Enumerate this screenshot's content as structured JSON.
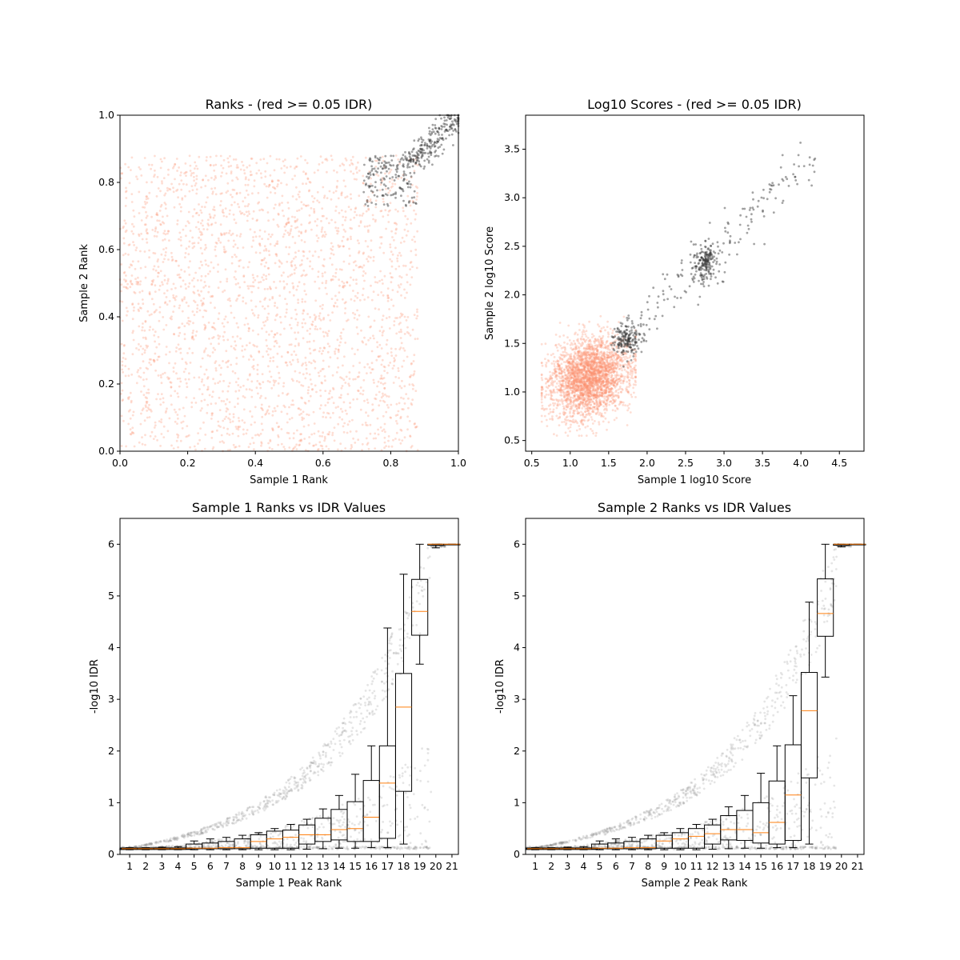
{
  "colors": {
    "low_idr": "#fc9272",
    "high_idr": "#333333",
    "median": "#ff7f0e",
    "box": "#000000"
  },
  "chart_data": [
    {
      "type": "scatter",
      "title": "Ranks - (red >= 0.05 IDR)",
      "xlabel": "Sample 1 Rank",
      "ylabel": "Sample 2 Rank",
      "xlim": [
        0.0,
        1.0
      ],
      "ylim": [
        0.0,
        1.0
      ],
      "xticks": [
        "0.0",
        "0.2",
        "0.4",
        "0.6",
        "0.8",
        "1.0"
      ],
      "yticks": [
        "0.0",
        "0.2",
        "0.4",
        "0.6",
        "0.8",
        "1.0"
      ],
      "series": [
        {
          "color": "low_idr",
          "n_points": 3000,
          "distribution": "uniform in x 0.0–0.88, y 0.0–0.88"
        },
        {
          "color": "high_idr",
          "n_points": 400,
          "distribution": "clustered along diagonal, x 0.72–1.0, y 0.72–1.0"
        }
      ],
      "grid": false
    },
    {
      "type": "scatter",
      "title": "Log10 Scores - (red >= 0.05 IDR)",
      "xlabel": "Sample 1 log10 Score",
      "ylabel": "Sample 2 log10 Score",
      "xlim": [
        0.42,
        4.82
      ],
      "ylim": [
        0.39,
        3.85
      ],
      "xticks": [
        "0.5",
        "1.0",
        "1.5",
        "2.0",
        "2.5",
        "3.0",
        "3.5",
        "4.0",
        "4.5"
      ],
      "yticks": [
        "0.5",
        "1.0",
        "1.5",
        "2.0",
        "2.5",
        "3.0",
        "3.5"
      ],
      "series": [
        {
          "color": "low_idr",
          "n_points": 3000,
          "distribution": "dense cloud centred near (1.25, 1.15), x 0.65–1.85, y 0.55–1.75"
        },
        {
          "color": "high_idr",
          "n_points": 500,
          "distribution": "cluster near (1.75, 1.55), cluster near (2.75, 2.35), sparse tail up to (4.6, 3.65)"
        }
      ],
      "grid": false
    },
    {
      "type": "box",
      "title": "Sample 1 Ranks vs IDR Values",
      "xlabel": "Sample 1 Peak Rank",
      "ylabel": "-log10 IDR",
      "ylim": [
        0,
        6.5
      ],
      "yticks": [
        "0",
        "1",
        "2",
        "3",
        "4",
        "5",
        "6"
      ],
      "categories": [
        "1",
        "2",
        "3",
        "4",
        "5",
        "6",
        "7",
        "8",
        "9",
        "10",
        "11",
        "12",
        "13",
        "14",
        "15",
        "16",
        "17",
        "18",
        "19",
        "20",
        "21"
      ],
      "boxes": [
        {
          "q1": 0.1,
          "median": 0.11,
          "q3": 0.12,
          "whislo": 0.09,
          "whishi": 0.13
        },
        {
          "q1": 0.1,
          "median": 0.11,
          "q3": 0.12,
          "whislo": 0.09,
          "whishi": 0.13
        },
        {
          "q1": 0.1,
          "median": 0.11,
          "q3": 0.12,
          "whislo": 0.09,
          "whishi": 0.14
        },
        {
          "q1": 0.1,
          "median": 0.11,
          "q3": 0.12,
          "whislo": 0.09,
          "whishi": 0.15
        },
        {
          "q1": 0.11,
          "median": 0.12,
          "q3": 0.2,
          "whislo": 0.09,
          "whishi": 0.26
        },
        {
          "q1": 0.11,
          "median": 0.12,
          "q3": 0.22,
          "whislo": 0.09,
          "whishi": 0.3
        },
        {
          "q1": 0.11,
          "median": 0.13,
          "q3": 0.25,
          "whislo": 0.09,
          "whishi": 0.33
        },
        {
          "q1": 0.11,
          "median": 0.13,
          "q3": 0.3,
          "whislo": 0.09,
          "whishi": 0.37
        },
        {
          "q1": 0.12,
          "median": 0.25,
          "q3": 0.38,
          "whislo": 0.09,
          "whishi": 0.42
        },
        {
          "q1": 0.12,
          "median": 0.3,
          "q3": 0.45,
          "whislo": 0.09,
          "whishi": 0.5
        },
        {
          "q1": 0.12,
          "median": 0.33,
          "q3": 0.47,
          "whislo": 0.09,
          "whishi": 0.58
        },
        {
          "q1": 0.2,
          "median": 0.38,
          "q3": 0.57,
          "whislo": 0.1,
          "whishi": 0.68
        },
        {
          "q1": 0.25,
          "median": 0.38,
          "q3": 0.7,
          "whislo": 0.11,
          "whishi": 0.88
        },
        {
          "q1": 0.28,
          "median": 0.48,
          "q3": 0.87,
          "whislo": 0.12,
          "whishi": 1.14
        },
        {
          "q1": 0.25,
          "median": 0.5,
          "q3": 1.02,
          "whislo": 0.12,
          "whishi": 1.55
        },
        {
          "q1": 0.25,
          "median": 0.72,
          "q3": 1.43,
          "whislo": 0.13,
          "whishi": 2.1
        },
        {
          "q1": 0.31,
          "median": 1.38,
          "q3": 2.1,
          "whislo": 0.13,
          "whishi": 4.38
        },
        {
          "q1": 1.22,
          "median": 2.85,
          "q3": 3.5,
          "whislo": 0.2,
          "whishi": 5.42
        },
        {
          "q1": 4.24,
          "median": 4.7,
          "q3": 5.32,
          "whislo": 3.68,
          "whishi": 6.0
        },
        {
          "q1": 5.98,
          "median": 6.0,
          "q3": 6.0,
          "whislo": 5.93,
          "whishi": 6.0
        },
        {
          "q1": 6.0,
          "median": 6.0,
          "q3": 6.0,
          "whislo": 6.0,
          "whishi": 6.0
        }
      ],
      "scatter_overlay": "grey points following an exponential curve from 0.1 at rank 0 to 6.0 at rank 19.5"
    },
    {
      "type": "box",
      "title": "Sample 2 Ranks vs IDR Values",
      "xlabel": "Sample 2 Peak Rank",
      "ylabel": "-log10 IDR",
      "ylim": [
        0,
        6.5
      ],
      "yticks": [
        "0",
        "1",
        "2",
        "3",
        "4",
        "5",
        "6"
      ],
      "categories": [
        "1",
        "2",
        "3",
        "4",
        "5",
        "6",
        "7",
        "8",
        "9",
        "10",
        "11",
        "12",
        "13",
        "14",
        "15",
        "16",
        "17",
        "18",
        "19",
        "20",
        "21"
      ],
      "boxes": [
        {
          "q1": 0.1,
          "median": 0.11,
          "q3": 0.12,
          "whislo": 0.09,
          "whishi": 0.13
        },
        {
          "q1": 0.1,
          "median": 0.11,
          "q3": 0.12,
          "whislo": 0.09,
          "whishi": 0.13
        },
        {
          "q1": 0.1,
          "median": 0.11,
          "q3": 0.12,
          "whislo": 0.09,
          "whishi": 0.14
        },
        {
          "q1": 0.1,
          "median": 0.11,
          "q3": 0.12,
          "whislo": 0.09,
          "whishi": 0.15
        },
        {
          "q1": 0.11,
          "median": 0.12,
          "q3": 0.2,
          "whislo": 0.09,
          "whishi": 0.26
        },
        {
          "q1": 0.11,
          "median": 0.12,
          "q3": 0.22,
          "whislo": 0.09,
          "whishi": 0.3
        },
        {
          "q1": 0.11,
          "median": 0.13,
          "q3": 0.25,
          "whislo": 0.09,
          "whishi": 0.33
        },
        {
          "q1": 0.11,
          "median": 0.13,
          "q3": 0.3,
          "whislo": 0.09,
          "whishi": 0.37
        },
        {
          "q1": 0.12,
          "median": 0.26,
          "q3": 0.37,
          "whislo": 0.09,
          "whishi": 0.42
        },
        {
          "q1": 0.12,
          "median": 0.3,
          "q3": 0.42,
          "whislo": 0.09,
          "whishi": 0.5
        },
        {
          "q1": 0.12,
          "median": 0.35,
          "q3": 0.5,
          "whislo": 0.09,
          "whishi": 0.58
        },
        {
          "q1": 0.2,
          "median": 0.4,
          "q3": 0.57,
          "whislo": 0.1,
          "whishi": 0.68
        },
        {
          "q1": 0.28,
          "median": 0.48,
          "q3": 0.75,
          "whislo": 0.11,
          "whishi": 0.92
        },
        {
          "q1": 0.27,
          "median": 0.48,
          "q3": 0.85,
          "whislo": 0.12,
          "whishi": 1.14
        },
        {
          "q1": 0.22,
          "median": 0.42,
          "q3": 1.0,
          "whislo": 0.12,
          "whishi": 1.57
        },
        {
          "q1": 0.2,
          "median": 0.62,
          "q3": 1.42,
          "whislo": 0.13,
          "whishi": 2.1
        },
        {
          "q1": 0.27,
          "median": 1.15,
          "q3": 2.12,
          "whislo": 0.13,
          "whishi": 3.07
        },
        {
          "q1": 1.48,
          "median": 2.78,
          "q3": 3.52,
          "whislo": 0.2,
          "whishi": 4.88
        },
        {
          "q1": 4.22,
          "median": 4.66,
          "q3": 5.33,
          "whislo": 3.43,
          "whishi": 6.0
        },
        {
          "q1": 5.98,
          "median": 6.0,
          "q3": 6.0,
          "whislo": 5.95,
          "whishi": 6.0
        },
        {
          "q1": 6.0,
          "median": 6.0,
          "q3": 6.0,
          "whislo": 6.0,
          "whishi": 6.0
        }
      ],
      "scatter_overlay": "grey points following an exponential curve from 0.1 at rank 0 to 6.0 at rank 19.5"
    }
  ]
}
